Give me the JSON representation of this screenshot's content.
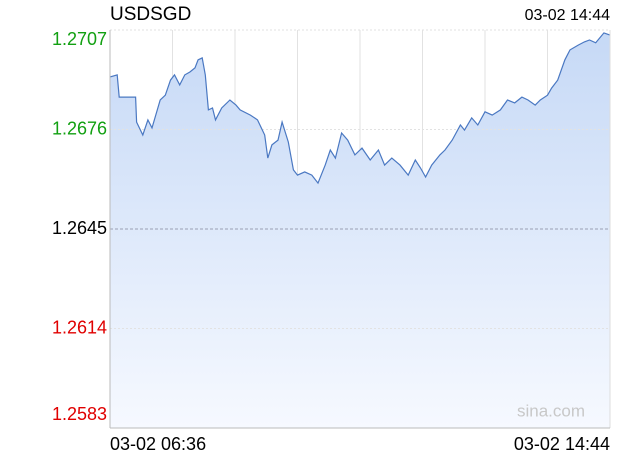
{
  "chart_data": {
    "type": "line",
    "title": "USDSGD",
    "watermark": "sina.com",
    "x": [
      "03-02 06:36",
      "03-02 06:43",
      "03-02 06:45",
      "03-02 07:01",
      "03-02 07:02",
      "03-02 07:08",
      "03-02 07:13",
      "03-02 07:17",
      "03-02 07:25",
      "03-02 07:30",
      "03-02 07:35",
      "03-02 07:39",
      "03-02 07:44",
      "03-02 07:49",
      "03-02 07:54",
      "03-02 07:59",
      "03-02 08:02",
      "03-02 08:06",
      "03-02 08:09",
      "03-02 08:12",
      "03-02 08:16",
      "03-02 08:19",
      "03-02 08:25",
      "03-02 08:33",
      "03-02 08:39",
      "03-02 08:43",
      "03-02 08:53",
      "03-02 09:00",
      "03-02 09:07",
      "03-02 09:10",
      "03-02 09:14",
      "03-02 09:20",
      "03-02 09:24",
      "03-02 09:30",
      "03-02 09:35",
      "03-02 09:39",
      "03-02 09:46",
      "03-02 09:53",
      "03-02 09:59",
      "03-02 10:06",
      "03-02 10:11",
      "03-02 10:16",
      "03-02 10:22",
      "03-02 10:28",
      "03-02 10:35",
      "03-02 10:42",
      "03-02 10:50",
      "03-02 10:58",
      "03-02 11:04",
      "03-02 11:11",
      "03-02 11:19",
      "03-02 11:27",
      "03-02 11:34",
      "03-02 11:39",
      "03-02 11:44",
      "03-02 11:50",
      "03-02 11:58",
      "03-02 12:03",
      "03-02 12:10",
      "03-02 12:18",
      "03-02 12:22",
      "03-02 12:29",
      "03-02 12:35",
      "03-02 12:42",
      "03-02 12:49",
      "03-02 12:57",
      "03-02 13:04",
      "03-02 13:11",
      "03-02 13:18",
      "03-02 13:24",
      "03-02 13:31",
      "03-02 13:36",
      "03-02 13:43",
      "03-02 13:47",
      "03-02 13:53",
      "03-02 14:00",
      "03-02 14:05",
      "03-02 14:13",
      "03-02 14:19",
      "03-02 14:24",
      "03-02 14:30",
      "03-02 14:38",
      "03-02 14:44"
    ],
    "series": [
      {
        "color": "#4a78c2",
        "values": [
          1.26924,
          1.2693,
          1.26861,
          1.26861,
          1.26783,
          1.26743,
          1.2679,
          1.26765,
          1.26852,
          1.26867,
          1.26914,
          1.2693,
          1.26899,
          1.2693,
          1.26939,
          1.26952,
          1.26977,
          1.26983,
          1.2693,
          1.26821,
          1.26827,
          1.2679,
          1.26827,
          1.26852,
          1.26836,
          1.26821,
          1.26805,
          1.2679,
          1.26743,
          1.26671,
          1.26712,
          1.26727,
          1.26783,
          1.26721,
          1.26634,
          1.26618,
          1.26628,
          1.26618,
          1.26593,
          1.26649,
          1.26696,
          1.26671,
          1.26749,
          1.26727,
          1.26681,
          1.26702,
          1.26665,
          1.26696,
          1.26649,
          1.26671,
          1.26649,
          1.26618,
          1.26665,
          1.2664,
          1.26612,
          1.26649,
          1.26681,
          1.26696,
          1.26727,
          1.26774,
          1.26758,
          1.26796,
          1.26774,
          1.26815,
          1.26805,
          1.26821,
          1.26852,
          1.26843,
          1.26861,
          1.26852,
          1.26836,
          1.26852,
          1.26867,
          1.26889,
          1.26914,
          1.26977,
          1.27008,
          1.27023,
          1.27033,
          1.27039,
          1.2703,
          1.27061,
          1.27054
        ]
      }
    ],
    "xlim": [
      "03-02 06:36",
      "03-02 14:44"
    ],
    "ylim": [
      1.2583,
      1.2707
    ],
    "yticks": [
      1.2583,
      1.2614,
      1.2645,
      1.2676,
      1.2707
    ],
    "ytick_colors": [
      "#e00000",
      "#e00000",
      "#000000",
      "#12a012",
      "#12a012"
    ],
    "x_grid_divisions": 8
  }
}
